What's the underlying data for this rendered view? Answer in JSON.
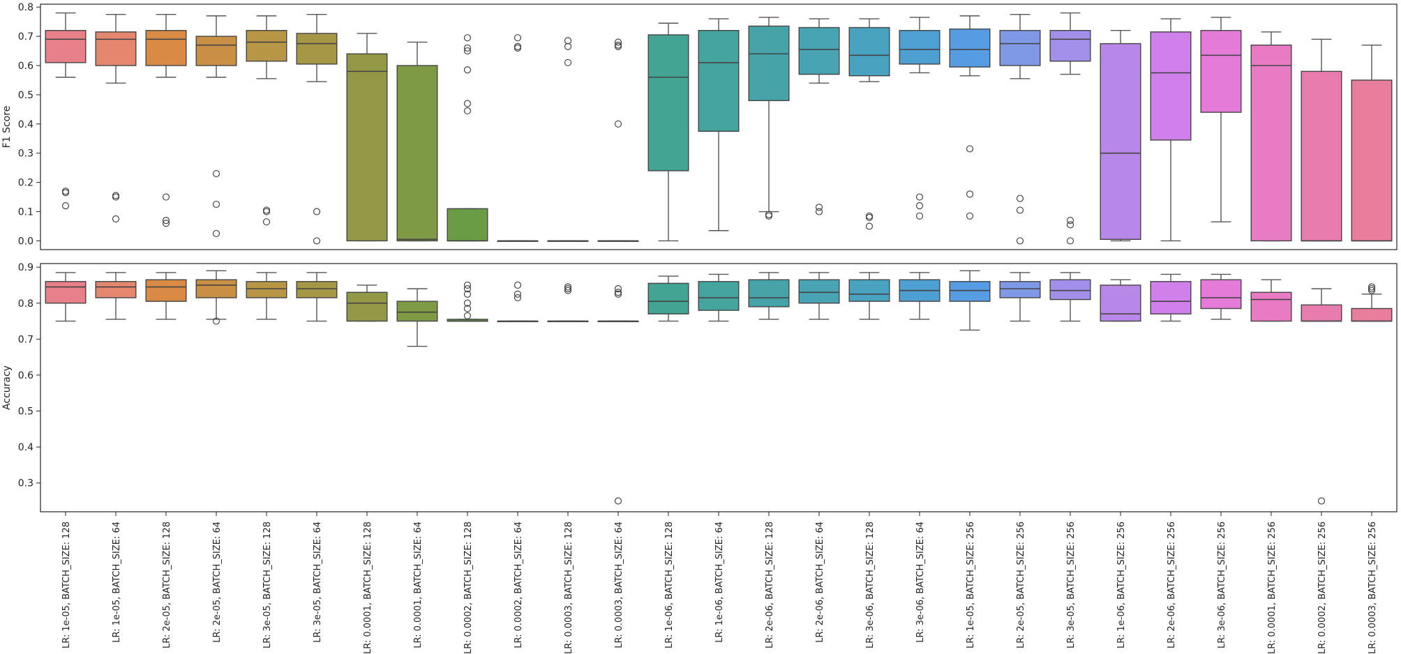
{
  "chart_data": [
    {
      "type": "box",
      "ylabel": "F1 Score",
      "ylim": [
        -0.03,
        0.81
      ],
      "yticks": [
        "0.0",
        "0.1",
        "0.2",
        "0.3",
        "0.4",
        "0.5",
        "0.6",
        "0.7",
        "0.8"
      ],
      "ytick_values": [
        0,
        0.1,
        0.2,
        0.3,
        0.4,
        0.5,
        0.6,
        0.7,
        0.8
      ],
      "boxes": [
        {
          "min": 0.56,
          "q1": 0.61,
          "median": 0.69,
          "q3": 0.72,
          "max": 0.78,
          "outliers": [
            0.17,
            0.165,
            0.12
          ]
        },
        {
          "min": 0.54,
          "q1": 0.6,
          "median": 0.69,
          "q3": 0.715,
          "max": 0.775,
          "outliers": [
            0.155,
            0.15,
            0.075
          ]
        },
        {
          "min": 0.56,
          "q1": 0.6,
          "median": 0.69,
          "q3": 0.72,
          "max": 0.775,
          "outliers": [
            0.15,
            0.07,
            0.06
          ]
        },
        {
          "min": 0.56,
          "q1": 0.6,
          "median": 0.67,
          "q3": 0.7,
          "max": 0.77,
          "outliers": [
            0.23,
            0.125,
            0.025
          ]
        },
        {
          "min": 0.555,
          "q1": 0.615,
          "median": 0.68,
          "q3": 0.72,
          "max": 0.77,
          "outliers": [
            0.105,
            0.1,
            0.065
          ]
        },
        {
          "min": 0.545,
          "q1": 0.605,
          "median": 0.675,
          "q3": 0.71,
          "max": 0.775,
          "outliers": [
            0.1,
            0.0
          ]
        },
        {
          "min": 0.0,
          "q1": 0.0,
          "median": 0.58,
          "q3": 0.64,
          "max": 0.71,
          "outliers": []
        },
        {
          "min": 0.0,
          "q1": 0.0,
          "median": 0.005,
          "q3": 0.6,
          "max": 0.68,
          "outliers": []
        },
        {
          "min": 0.0,
          "q1": 0.0,
          "median": 0.0,
          "q3": 0.11,
          "max": 0.11,
          "outliers": [
            0.695,
            0.66,
            0.65,
            0.585,
            0.47,
            0.445
          ]
        },
        {
          "min": 0.0,
          "q1": 0.0,
          "median": 0.0,
          "q3": 0.0,
          "max": 0.0,
          "outliers": [
            0.695,
            0.665,
            0.66
          ]
        },
        {
          "min": 0.0,
          "q1": 0.0,
          "median": 0.0,
          "q3": 0.0,
          "max": 0.0,
          "outliers": [
            0.685,
            0.665,
            0.61
          ]
        },
        {
          "min": 0.0,
          "q1": 0.0,
          "median": 0.0,
          "q3": 0.0,
          "max": 0.0,
          "outliers": [
            0.68,
            0.67,
            0.665,
            0.4
          ]
        },
        {
          "min": 0.0,
          "q1": 0.24,
          "median": 0.56,
          "q3": 0.705,
          "max": 0.745,
          "outliers": []
        },
        {
          "min": 0.035,
          "q1": 0.375,
          "median": 0.61,
          "q3": 0.72,
          "max": 0.76,
          "outliers": []
        },
        {
          "min": 0.1,
          "q1": 0.48,
          "median": 0.64,
          "q3": 0.735,
          "max": 0.765,
          "outliers": [
            0.09,
            0.085
          ]
        },
        {
          "min": 0.54,
          "q1": 0.57,
          "median": 0.655,
          "q3": 0.73,
          "max": 0.76,
          "outliers": [
            0.115,
            0.1
          ]
        },
        {
          "min": 0.545,
          "q1": 0.565,
          "median": 0.635,
          "q3": 0.73,
          "max": 0.76,
          "outliers": [
            0.085,
            0.08,
            0.05
          ]
        },
        {
          "min": 0.575,
          "q1": 0.605,
          "median": 0.655,
          "q3": 0.72,
          "max": 0.765,
          "outliers": [
            0.15,
            0.12,
            0.085
          ]
        },
        {
          "min": 0.565,
          "q1": 0.595,
          "median": 0.655,
          "q3": 0.725,
          "max": 0.77,
          "outliers": [
            0.315,
            0.16,
            0.085
          ]
        },
        {
          "min": 0.555,
          "q1": 0.6,
          "median": 0.675,
          "q3": 0.72,
          "max": 0.775,
          "outliers": [
            0.145,
            0.105,
            0.0
          ]
        },
        {
          "min": 0.57,
          "q1": 0.615,
          "median": 0.69,
          "q3": 0.72,
          "max": 0.78,
          "outliers": [
            0.07,
            0.055,
            0.0
          ]
        },
        {
          "min": 0.0,
          "q1": 0.005,
          "median": 0.3,
          "q3": 0.675,
          "max": 0.72,
          "outliers": []
        },
        {
          "min": 0.0,
          "q1": 0.345,
          "median": 0.575,
          "q3": 0.715,
          "max": 0.76,
          "outliers": []
        },
        {
          "min": 0.065,
          "q1": 0.44,
          "median": 0.635,
          "q3": 0.72,
          "max": 0.765,
          "outliers": []
        },
        {
          "min": 0.0,
          "q1": 0.0,
          "median": 0.6,
          "q3": 0.67,
          "max": 0.715,
          "outliers": []
        },
        {
          "min": 0.0,
          "q1": 0.0,
          "median": 0.0,
          "q3": 0.58,
          "max": 0.69,
          "outliers": []
        },
        {
          "min": 0.0,
          "q1": 0.0,
          "median": 0.0,
          "q3": 0.55,
          "max": 0.67,
          "outliers": []
        }
      ]
    },
    {
      "type": "box",
      "ylabel": "Accuracy",
      "ylim": [
        0.22,
        0.91
      ],
      "yticks": [
        "0.3",
        "0.4",
        "0.5",
        "0.6",
        "0.7",
        "0.8",
        "0.9"
      ],
      "ytick_values": [
        0.3,
        0.4,
        0.5,
        0.6,
        0.7,
        0.8,
        0.9
      ],
      "boxes": [
        {
          "min": 0.75,
          "q1": 0.8,
          "median": 0.845,
          "q3": 0.86,
          "max": 0.885,
          "outliers": []
        },
        {
          "min": 0.755,
          "q1": 0.815,
          "median": 0.845,
          "q3": 0.86,
          "max": 0.885,
          "outliers": []
        },
        {
          "min": 0.755,
          "q1": 0.805,
          "median": 0.845,
          "q3": 0.865,
          "max": 0.885,
          "outliers": []
        },
        {
          "min": 0.755,
          "q1": 0.815,
          "median": 0.85,
          "q3": 0.865,
          "max": 0.89,
          "outliers": [
            0.75
          ]
        },
        {
          "min": 0.755,
          "q1": 0.815,
          "median": 0.84,
          "q3": 0.86,
          "max": 0.885,
          "outliers": []
        },
        {
          "min": 0.75,
          "q1": 0.815,
          "median": 0.84,
          "q3": 0.86,
          "max": 0.885,
          "outliers": []
        },
        {
          "min": 0.75,
          "q1": 0.75,
          "median": 0.8,
          "q3": 0.83,
          "max": 0.85,
          "outliers": []
        },
        {
          "min": 0.68,
          "q1": 0.75,
          "median": 0.775,
          "q3": 0.805,
          "max": 0.84,
          "outliers": []
        },
        {
          "min": 0.75,
          "q1": 0.75,
          "median": 0.75,
          "q3": 0.755,
          "max": 0.755,
          "outliers": [
            0.85,
            0.84,
            0.825,
            0.8,
            0.785,
            0.765
          ]
        },
        {
          "min": 0.75,
          "q1": 0.75,
          "median": 0.75,
          "q3": 0.75,
          "max": 0.75,
          "outliers": [
            0.85,
            0.825,
            0.815
          ]
        },
        {
          "min": 0.75,
          "q1": 0.75,
          "median": 0.75,
          "q3": 0.75,
          "max": 0.75,
          "outliers": [
            0.845,
            0.84,
            0.835
          ]
        },
        {
          "min": 0.75,
          "q1": 0.75,
          "median": 0.75,
          "q3": 0.75,
          "max": 0.75,
          "outliers": [
            0.84,
            0.83,
            0.825,
            0.25
          ]
        },
        {
          "min": 0.75,
          "q1": 0.77,
          "median": 0.805,
          "q3": 0.855,
          "max": 0.875,
          "outliers": []
        },
        {
          "min": 0.75,
          "q1": 0.78,
          "median": 0.815,
          "q3": 0.86,
          "max": 0.88,
          "outliers": []
        },
        {
          "min": 0.755,
          "q1": 0.79,
          "median": 0.815,
          "q3": 0.865,
          "max": 0.885,
          "outliers": []
        },
        {
          "min": 0.755,
          "q1": 0.8,
          "median": 0.83,
          "q3": 0.865,
          "max": 0.885,
          "outliers": []
        },
        {
          "min": 0.755,
          "q1": 0.805,
          "median": 0.825,
          "q3": 0.865,
          "max": 0.885,
          "outliers": []
        },
        {
          "min": 0.755,
          "q1": 0.805,
          "median": 0.835,
          "q3": 0.865,
          "max": 0.885,
          "outliers": []
        },
        {
          "min": 0.725,
          "q1": 0.805,
          "median": 0.835,
          "q3": 0.86,
          "max": 0.89,
          "outliers": []
        },
        {
          "min": 0.75,
          "q1": 0.815,
          "median": 0.84,
          "q3": 0.86,
          "max": 0.885,
          "outliers": []
        },
        {
          "min": 0.75,
          "q1": 0.81,
          "median": 0.835,
          "q3": 0.865,
          "max": 0.885,
          "outliers": []
        },
        {
          "min": 0.75,
          "q1": 0.75,
          "median": 0.77,
          "q3": 0.85,
          "max": 0.865,
          "outliers": []
        },
        {
          "min": 0.75,
          "q1": 0.77,
          "median": 0.805,
          "q3": 0.86,
          "max": 0.88,
          "outliers": []
        },
        {
          "min": 0.755,
          "q1": 0.785,
          "median": 0.815,
          "q3": 0.865,
          "max": 0.88,
          "outliers": []
        },
        {
          "min": 0.75,
          "q1": 0.75,
          "median": 0.81,
          "q3": 0.83,
          "max": 0.865,
          "outliers": []
        },
        {
          "min": 0.75,
          "q1": 0.75,
          "median": 0.75,
          "q3": 0.795,
          "max": 0.84,
          "outliers": [
            0.25
          ]
        },
        {
          "min": 0.75,
          "q1": 0.75,
          "median": 0.75,
          "q3": 0.785,
          "max": 0.825,
          "outliers": [
            0.845,
            0.84,
            0.835
          ]
        }
      ]
    }
  ],
  "categories": [
    "LR: 1e-05, BATCH_SIZE: 128",
    "LR: 1e-05, BATCH_SIZE: 64",
    "LR: 2e-05, BATCH_SIZE: 128",
    "LR: 2e-05, BATCH_SIZE: 64",
    "LR: 3e-05, BATCH_SIZE: 128",
    "LR: 3e-05, BATCH_SIZE: 64",
    "LR: 0.0001, BATCH_SIZE: 128",
    "LR: 0.0001, BATCH_SIZE: 64",
    "LR: 0.0002, BATCH_SIZE: 128",
    "LR: 0.0002, BATCH_SIZE: 64",
    "LR: 0.0003, BATCH_SIZE: 128",
    "LR: 0.0003, BATCH_SIZE: 64",
    "LR: 1e-06, BATCH_SIZE: 128",
    "LR: 1e-06, BATCH_SIZE: 64",
    "LR: 2e-06, BATCH_SIZE: 128",
    "LR: 2e-06, BATCH_SIZE: 64",
    "LR: 3e-06, BATCH_SIZE: 128",
    "LR: 3e-06, BATCH_SIZE: 64",
    "LR: 1e-05, BATCH_SIZE: 256",
    "LR: 2e-05, BATCH_SIZE: 256",
    "LR: 3e-05, BATCH_SIZE: 256",
    "LR: 1e-06, BATCH_SIZE: 256",
    "LR: 2e-06, BATCH_SIZE: 256",
    "LR: 3e-06, BATCH_SIZE: 256",
    "LR: 0.0001, BATCH_SIZE: 256",
    "LR: 0.0002, BATCH_SIZE: 256",
    "LR: 0.0003, BATCH_SIZE: 256"
  ],
  "colors": [
    "#e8808a",
    "#e5876f",
    "#d98a45",
    "#c98f45",
    "#b79745",
    "#a59745",
    "#929845",
    "#7f9a45",
    "#6a9c45",
    "#4fa04f",
    "#47a276",
    "#44a38a",
    "#44a493",
    "#45a49e",
    "#46a4a8",
    "#48a3b3",
    "#4aa2c1",
    "#4da0d1",
    "#559ce3",
    "#7f99e6",
    "#a28fea",
    "#b888e8",
    "#cf80ea",
    "#e57bd8",
    "#e87bc3",
    "#e97caf",
    "#e97d9c"
  ]
}
